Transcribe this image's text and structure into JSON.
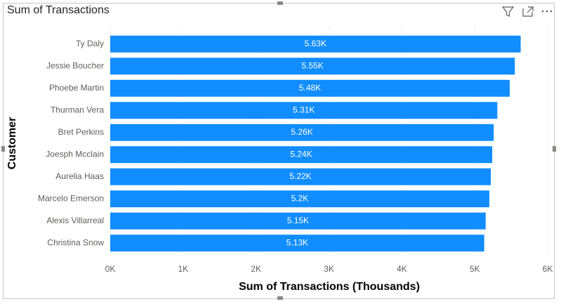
{
  "chart_data": {
    "type": "bar",
    "orientation": "horizontal",
    "title": "Sum of Transactions",
    "x_label": "Sum of Transactions (Thousands)",
    "y_label": "Customer",
    "categories": [
      "Ty Daly",
      "Jessie Boucher",
      "Phoebe Martin",
      "Thurman Vera",
      "Bret Perkins",
      "Joesph Mcclain",
      "Aurelia Haas",
      "Marcelo Emerson",
      "Alexis Villarreal",
      "Christina Snow"
    ],
    "values": [
      5630,
      5550,
      5480,
      5310,
      5260,
      5240,
      5220,
      5200,
      5150,
      5130
    ],
    "value_labels": [
      "5.63K",
      "5.55K",
      "5.48K",
      "5.31K",
      "5.26K",
      "5.24K",
      "5.22K",
      "5.2K",
      "5.15K",
      "5.13K"
    ],
    "color": "#118dff",
    "xlim": [
      0,
      6000
    ],
    "xticks": [
      {
        "value": 0,
        "label": "0K"
      },
      {
        "value": 1000,
        "label": "1K"
      },
      {
        "value": 2000,
        "label": "2K"
      },
      {
        "value": 3000,
        "label": "3K"
      },
      {
        "value": 4000,
        "label": "4K"
      },
      {
        "value": 5000,
        "label": "5K"
      },
      {
        "value": 6000,
        "label": "6K"
      }
    ],
    "grid": true
  }
}
